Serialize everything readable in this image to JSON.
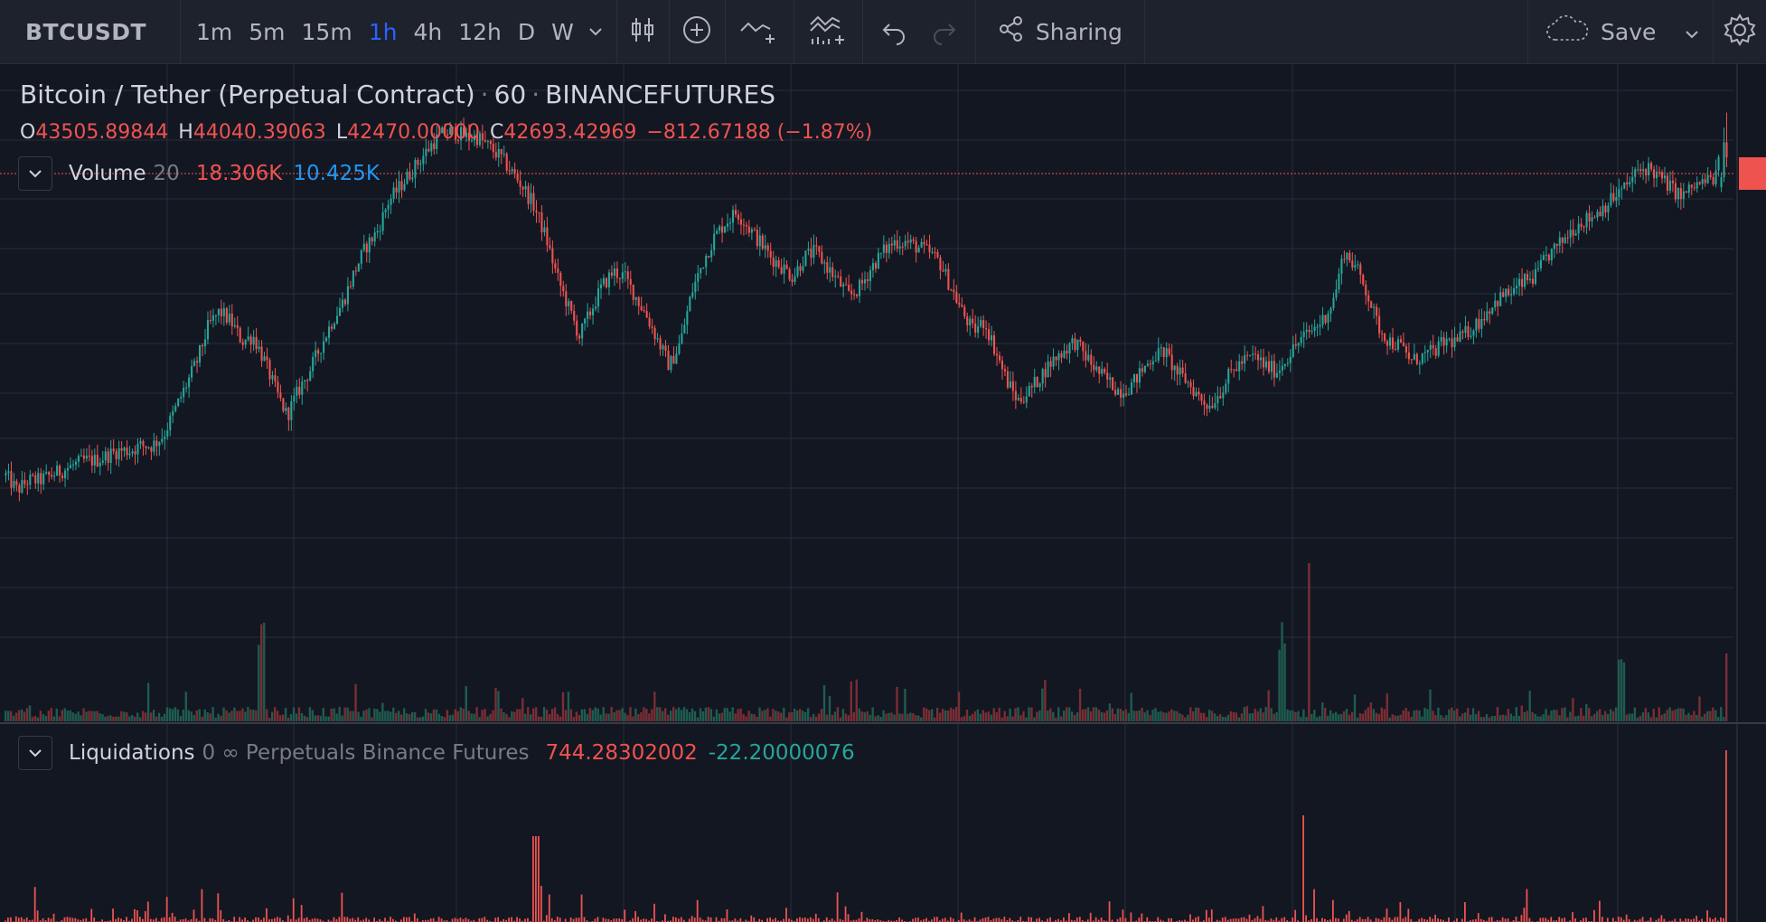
{
  "toolbar": {
    "symbol": "BTCUSDT",
    "timeframes": [
      {
        "label": "1m",
        "active": false
      },
      {
        "label": "5m",
        "active": false
      },
      {
        "label": "15m",
        "active": false
      },
      {
        "label": "1h",
        "active": true
      },
      {
        "label": "4h",
        "active": false
      },
      {
        "label": "12h",
        "active": false
      },
      {
        "label": "D",
        "active": false
      },
      {
        "label": "W",
        "active": false
      }
    ],
    "icons": [
      "chevron-down-icon",
      "candlestick-icon",
      "add-circle-icon",
      "indicator-add-icon",
      "compare-icon",
      "undo-icon",
      "redo-icon"
    ],
    "sharing_label": "Sharing",
    "save_label": "Save"
  },
  "legend": {
    "name": "Bitcoin / Tether (Perpetual Contract)",
    "interval": "60",
    "exchange": "BINANCEFUTURES",
    "o_label": "O",
    "o_value": "43505.89844",
    "h_label": "H",
    "h_value": "44040.39063",
    "l_label": "L",
    "l_value": "42470.00000",
    "c_label": "C",
    "c_value": "42693.42969",
    "change": "−812.67188 (−1.87%)"
  },
  "volume_legend": {
    "name": "Volume",
    "args": "20",
    "value_1": "18.306K",
    "value_2": "10.425K"
  },
  "liquidations_legend": {
    "name": "Liquidations",
    "args": "0 ∞ Perpetuals Binance Futures",
    "value_1": "744.28302002",
    "value_2": "-22.20000076"
  },
  "colors": {
    "background": "#131722",
    "grid": "#2a2e39",
    "up": "#26a69a",
    "down": "#ef5350",
    "accent": "#2962ff",
    "text": "#d1d4dc",
    "volume_up": "#1f5c4f",
    "volume_down": "#7a2e34",
    "current_price_line": "#ef5350"
  },
  "chart_data": {
    "type": "candlestick",
    "interval": "1h",
    "symbol": "BTCUSDT",
    "price_path": [
      28,
      25,
      27,
      27,
      28,
      29,
      30,
      31,
      31,
      32,
      33,
      33,
      34,
      34,
      36,
      41,
      46,
      51,
      58,
      61,
      59,
      55,
      56,
      51,
      45,
      40,
      45,
      49,
      54,
      59,
      63,
      69,
      74,
      77,
      83,
      86,
      89,
      92,
      95,
      97,
      97,
      96,
      96,
      94,
      92,
      89,
      86,
      82,
      76,
      68,
      62,
      56,
      61,
      66,
      69,
      68,
      64,
      60,
      55,
      50,
      55,
      65,
      71,
      76,
      79,
      81,
      78,
      75,
      72,
      70,
      68,
      72,
      73,
      70,
      67,
      64,
      66,
      70,
      73,
      75,
      75,
      74,
      73,
      71,
      66,
      61,
      57,
      59,
      53,
      47,
      43,
      45,
      48,
      51,
      53,
      55,
      52,
      49,
      47,
      45,
      46,
      49,
      52,
      53,
      49,
      47,
      44,
      42,
      45,
      49,
      51,
      52,
      50,
      49,
      52,
      55,
      57,
      59,
      63,
      73,
      70,
      65,
      58,
      55,
      54,
      51,
      52,
      53,
      55,
      55,
      57,
      59,
      62,
      64,
      65,
      67,
      68,
      72,
      74,
      77,
      79,
      80,
      82,
      84,
      86,
      89,
      90,
      88,
      86,
      84,
      86,
      87,
      88,
      97
    ],
    "volume_pane": {
      "series": "Volume",
      "ma_length": 20
    },
    "liquidations_pane": {
      "series": "Liquidations"
    }
  }
}
